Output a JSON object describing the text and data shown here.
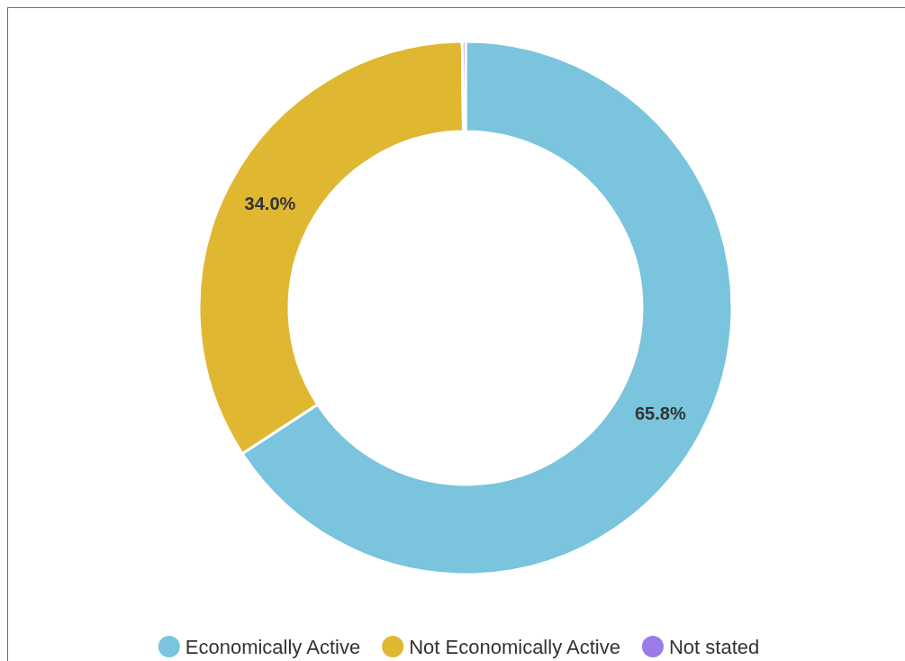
{
  "chart_data": {
    "type": "donut",
    "categories": [
      "Economically Active",
      "Not Economically Active",
      "Not stated"
    ],
    "values": [
      65.8,
      34.0,
      0.2
    ],
    "colors": [
      "#7ac4dd",
      "#e0b731",
      "#9b7bea"
    ],
    "value_labels": [
      "65.8%",
      "34.0%",
      null
    ],
    "legend": "bottom"
  }
}
